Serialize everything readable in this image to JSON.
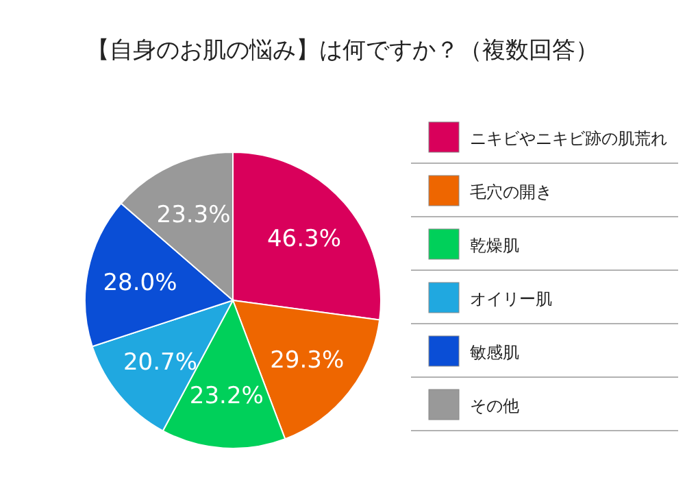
{
  "chart_data": {
    "type": "pie",
    "title": "【自身のお肌の悩み】は何ですか？（複数回答）",
    "categories": [
      "ニキビやニキビ跡の肌荒れ",
      "毛穴の開き",
      "乾燥肌",
      "オイリー肌",
      "敏感肌",
      "その他"
    ],
    "values": [
      46.3,
      29.3,
      23.2,
      20.7,
      28.0,
      23.3
    ],
    "colors": [
      "#d9005b",
      "#ee6600",
      "#00d05a",
      "#20a8e0",
      "#0a4ed6",
      "#999999"
    ],
    "value_labels": [
      "46.3%",
      "29.3%",
      "23.2%",
      "20.7%",
      "28.0%",
      "23.3%"
    ],
    "legend": "right"
  }
}
